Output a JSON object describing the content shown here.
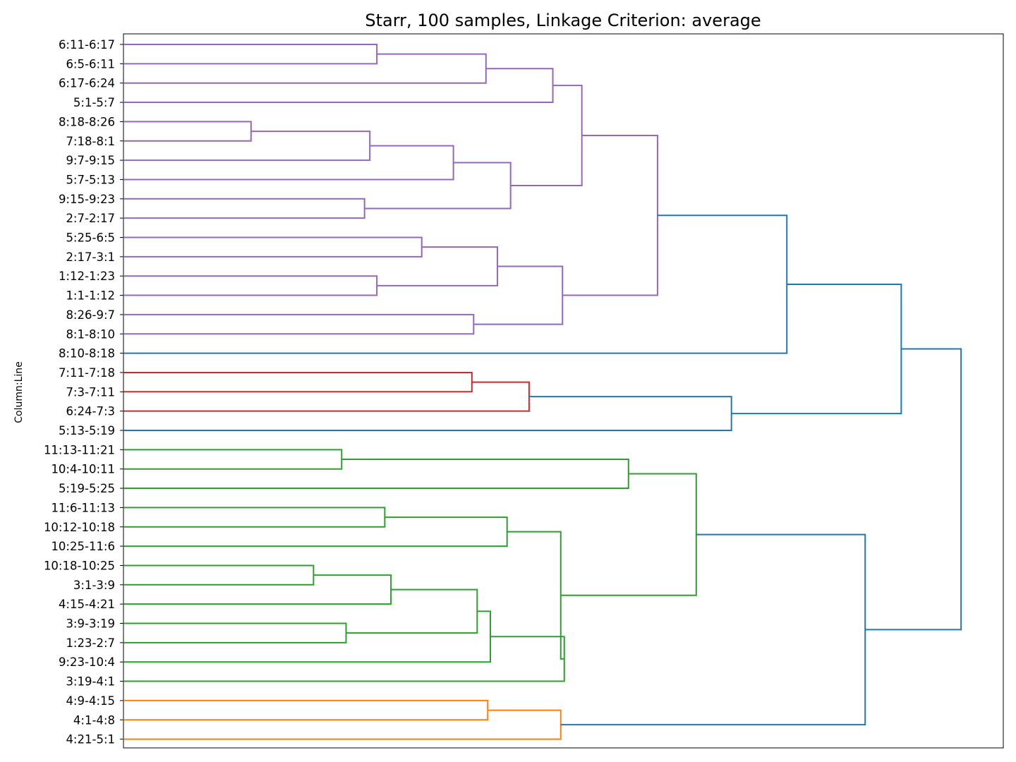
{
  "chart_data": {
    "type": "dendrogram",
    "title": "Starr, 100 samples, Linkage Criterion: average",
    "ylabel": "Column:Line",
    "xlabel": "",
    "orientation": "horizontal-leaves-left",
    "x_ticks_visible": false,
    "grid": false,
    "x_range": [
      0,
      1.0
    ],
    "leaves": [
      "6:11-6:17",
      "6:5-6:11",
      "6:17-6:24",
      "5:1-5:7",
      "8:18-8:26",
      "7:18-8:1",
      "9:7-9:15",
      "5:7-5:13",
      "9:15-9:23",
      "2:7-2:17",
      "5:25-6:5",
      "2:17-3:1",
      "1:12-1:23",
      "1:1-1:12",
      "8:26-9:7",
      "8:1-8:10",
      "8:10-8:18",
      "7:11-7:18",
      "7:3-7:11",
      "6:24-7:3",
      "5:13-5:19",
      "11:13-11:21",
      "10:4-10:11",
      "5:19-5:25",
      "11:6-11:13",
      "10:12-10:18",
      "10:25-11:6",
      "10:18-10:25",
      "3:1-3:9",
      "4:15-4:21",
      "3:9-3:19",
      "1:23-2:7",
      "9:23-10:4",
      "3:19-4:1",
      "4:9-4:15",
      "4:1-4:8",
      "4:21-5:1"
    ],
    "cluster_colors": {
      "purple": "#9467bd",
      "blue": "#1f77b4",
      "red": "#d62728",
      "green": "#2ca02c",
      "orange": "#ff7f0e"
    },
    "merges": [
      {
        "id": "M1",
        "a": "L0",
        "b": "L1",
        "height": 0.288,
        "color": "purple"
      },
      {
        "id": "M2",
        "a": "M1",
        "b": "L2",
        "height": 0.412,
        "color": "purple"
      },
      {
        "id": "M3",
        "a": "M2",
        "b": "L3",
        "height": 0.488,
        "color": "purple"
      },
      {
        "id": "M4",
        "a": "L4",
        "b": "L5",
        "height": 0.145,
        "color": "purple"
      },
      {
        "id": "M5",
        "a": "M4",
        "b": "L6",
        "height": 0.28,
        "color": "purple"
      },
      {
        "id": "M6",
        "a": "M5",
        "b": "L7",
        "height": 0.375,
        "color": "purple"
      },
      {
        "id": "M7",
        "a": "L8",
        "b": "L9",
        "height": 0.274,
        "color": "purple"
      },
      {
        "id": "M8",
        "a": "M6",
        "b": "M7",
        "height": 0.44,
        "color": "purple"
      },
      {
        "id": "M9",
        "a": "M3",
        "b": "M8",
        "height": 0.521,
        "color": "purple"
      },
      {
        "id": "M10",
        "a": "L10",
        "b": "L11",
        "height": 0.339,
        "color": "purple"
      },
      {
        "id": "M11",
        "a": "L12",
        "b": "L13",
        "height": 0.288,
        "color": "purple"
      },
      {
        "id": "M12",
        "a": "M10",
        "b": "M11",
        "height": 0.425,
        "color": "purple"
      },
      {
        "id": "M13",
        "a": "L14",
        "b": "L15",
        "height": 0.398,
        "color": "purple"
      },
      {
        "id": "M14",
        "a": "M12",
        "b": "M13",
        "height": 0.499,
        "color": "purple"
      },
      {
        "id": "M15",
        "a": "M9",
        "b": "M14",
        "height": 0.607,
        "color": "purple"
      },
      {
        "id": "M16",
        "a": "M15",
        "b": "L16",
        "height": 0.754,
        "color": "blue"
      },
      {
        "id": "M17",
        "a": "L17",
        "b": "L18",
        "height": 0.396,
        "color": "red"
      },
      {
        "id": "M18",
        "a": "M17",
        "b": "L19",
        "height": 0.461,
        "color": "red"
      },
      {
        "id": "M19",
        "a": "M18",
        "b": "L20",
        "height": 0.691,
        "color": "blue"
      },
      {
        "id": "M20",
        "a": "M16",
        "b": "M19",
        "height": 0.884,
        "color": "blue"
      },
      {
        "id": "M21",
        "a": "L21",
        "b": "L22",
        "height": 0.248,
        "color": "green"
      },
      {
        "id": "M22",
        "a": "M21",
        "b": "L23",
        "height": 0.574,
        "color": "green"
      },
      {
        "id": "M23",
        "a": "L24",
        "b": "L25",
        "height": 0.297,
        "color": "green"
      },
      {
        "id": "M24",
        "a": "M23",
        "b": "L26",
        "height": 0.436,
        "color": "green"
      },
      {
        "id": "M25",
        "a": "L27",
        "b": "L28",
        "height": 0.216,
        "color": "green"
      },
      {
        "id": "M26",
        "a": "M25",
        "b": "L29",
        "height": 0.304,
        "color": "green"
      },
      {
        "id": "M27",
        "a": "L30",
        "b": "L31",
        "height": 0.253,
        "color": "green"
      },
      {
        "id": "M28",
        "a": "M26",
        "b": "M27",
        "height": 0.402,
        "color": "green"
      },
      {
        "id": "M29",
        "a": "M28",
        "b": "L32",
        "height": 0.417,
        "color": "green"
      },
      {
        "id": "M30",
        "a": "M29",
        "b": "L33",
        "height": 0.501,
        "color": "green"
      },
      {
        "id": "M31",
        "a": "M24",
        "b": "M30",
        "height": 0.497,
        "color": "green"
      },
      {
        "id": "M32",
        "a": "M22",
        "b": "M31",
        "height": 0.651,
        "color": "green"
      },
      {
        "id": "M33",
        "a": "L34",
        "b": "L35",
        "height": 0.414,
        "color": "orange"
      },
      {
        "id": "M34",
        "a": "M33",
        "b": "L36",
        "height": 0.497,
        "color": "orange"
      },
      {
        "id": "M35",
        "a": "M32",
        "b": "M34",
        "height": 0.843,
        "color": "blue"
      },
      {
        "id": "M36",
        "a": "M20",
        "b": "M35",
        "height": 0.952,
        "color": "blue"
      }
    ]
  }
}
